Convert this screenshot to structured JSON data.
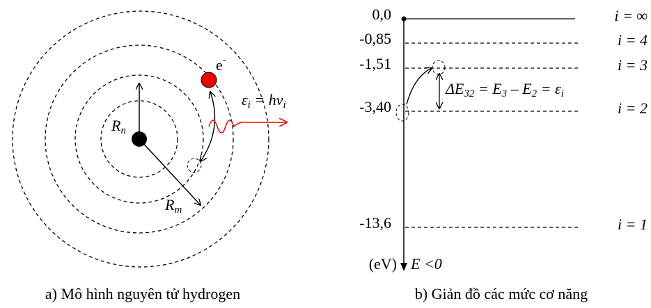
{
  "atom_model": {
    "electron": {
      "symbol": "e",
      "sup": "-"
    },
    "inner_radius": {
      "symbol": "R",
      "sub": "n"
    },
    "outer_radius": {
      "symbol": "R",
      "sub": "m"
    },
    "photon": [
      {
        "t": "ε"
      },
      {
        "t": "i",
        "sub": true
      },
      {
        "t": " = "
      },
      {
        "t": "hν"
      },
      {
        "t": "i",
        "sub": true
      }
    ],
    "caption": "a) Mô hình nguyên tử hydrogen"
  },
  "energy_diagram": {
    "levels": [
      {
        "energy": "0,0",
        "index": "i = ∞"
      },
      {
        "energy": "-0,85",
        "index": "i = 4"
      },
      {
        "energy": "-1,51",
        "index": "i = 3"
      },
      {
        "energy": "-3,40",
        "index": "i = 2"
      },
      {
        "energy": "-13,6",
        "index": "i = 1"
      }
    ],
    "transition": [
      {
        "t": "ΔE"
      },
      {
        "t": "32",
        "sub": true
      },
      {
        "t": " = E"
      },
      {
        "t": "3",
        "sub": true
      },
      {
        "t": " – E"
      },
      {
        "t": "2",
        "sub": true
      },
      {
        "t": " = ε"
      },
      {
        "t": "i",
        "sub": true
      }
    ],
    "unit": "(eV)",
    "axis_label": "E <0",
    "caption": "b) Giản đồ các mức cơ năng"
  }
}
